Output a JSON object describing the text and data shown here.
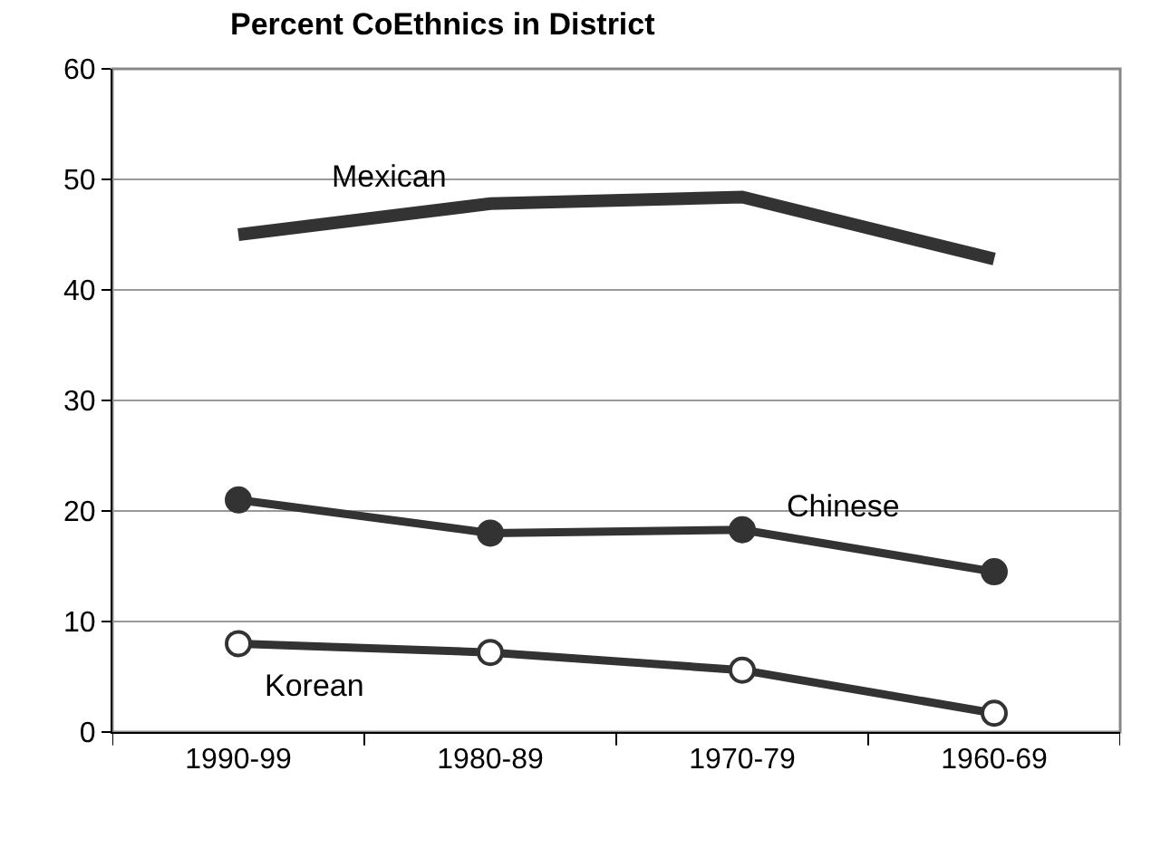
{
  "chart_data": {
    "type": "line",
    "title": "Percent CoEthnics in District",
    "categories": [
      "1990-99",
      "1980-89",
      "1970-79",
      "1960-69"
    ],
    "series": [
      {
        "name": "Mexican",
        "color": "#333333",
        "marker": "none",
        "values": [
          45,
          47.8,
          48.4,
          42.8
        ]
      },
      {
        "name": "Chinese",
        "color": "#333333",
        "marker": "circle",
        "values": [
          21,
          18,
          18.3,
          14.5
        ]
      },
      {
        "name": "Korean",
        "color": "#333333",
        "marker": "circle",
        "values": [
          8,
          7.2,
          5.6,
          1.7
        ]
      }
    ],
    "ylim": [
      0,
      60
    ],
    "yticks": [
      0,
      10,
      20,
      30,
      40,
      50,
      60
    ],
    "grid": "y",
    "legend": false,
    "line_style": "solid"
  }
}
